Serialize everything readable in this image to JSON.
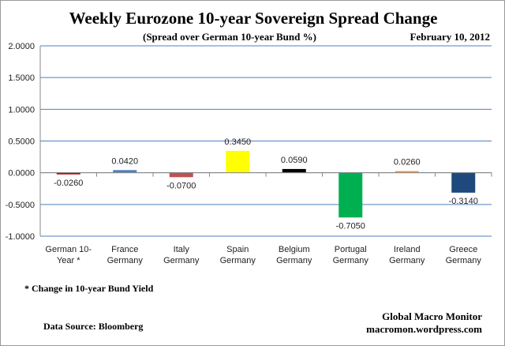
{
  "title": "Weekly Eurozone 10-year Sovereign Spread Change",
  "subtitle": "(Spread over German 10-year Bund  %)",
  "date": "February 10,  2012",
  "footnote": "* Change in 10-year Bund Yield",
  "data_source": "Data Source:  Bloomberg",
  "credit": [
    "Global Macro Monitor",
    "macromon.wordpress.com"
  ],
  "chart_data": {
    "type": "bar",
    "title": "Weekly Eurozone 10-year Sovereign Spread Change",
    "categories": [
      [
        "German 10-",
        "Year *"
      ],
      [
        "France",
        "Germany"
      ],
      [
        "Italy",
        "Germany"
      ],
      [
        "Spain",
        "Germany"
      ],
      [
        "Belgium",
        "Germany"
      ],
      [
        "Portugal",
        "Germany"
      ],
      [
        "Ireland",
        "Germany"
      ],
      [
        "Greece",
        "Germany"
      ]
    ],
    "values": [
      -0.026,
      0.042,
      -0.07,
      0.345,
      0.059,
      -0.705,
      0.026,
      -0.314
    ],
    "data_labels": [
      "-0.0260",
      "0.0420",
      "-0.0700",
      "0.3450",
      "0.0590",
      "-0.7050",
      "0.0260",
      "-0.3140"
    ],
    "colors": [
      "#C00000",
      "#4F81BD",
      "#C0504D",
      "#FFFF00",
      "#000000",
      "#00B050",
      "#F79646",
      "#1F497D"
    ],
    "ylim": [
      -1,
      2
    ],
    "yticks": [
      2,
      1.5,
      1,
      0.5,
      0,
      -0.5,
      -1
    ],
    "ytick_labels": [
      "2.0000",
      "1.5000",
      "1.0000",
      "0.5000",
      "0.0000",
      "-0.5000",
      "-1.0000"
    ],
    "grid": true,
    "grid_color": "#4F81BD",
    "legend": "none"
  }
}
